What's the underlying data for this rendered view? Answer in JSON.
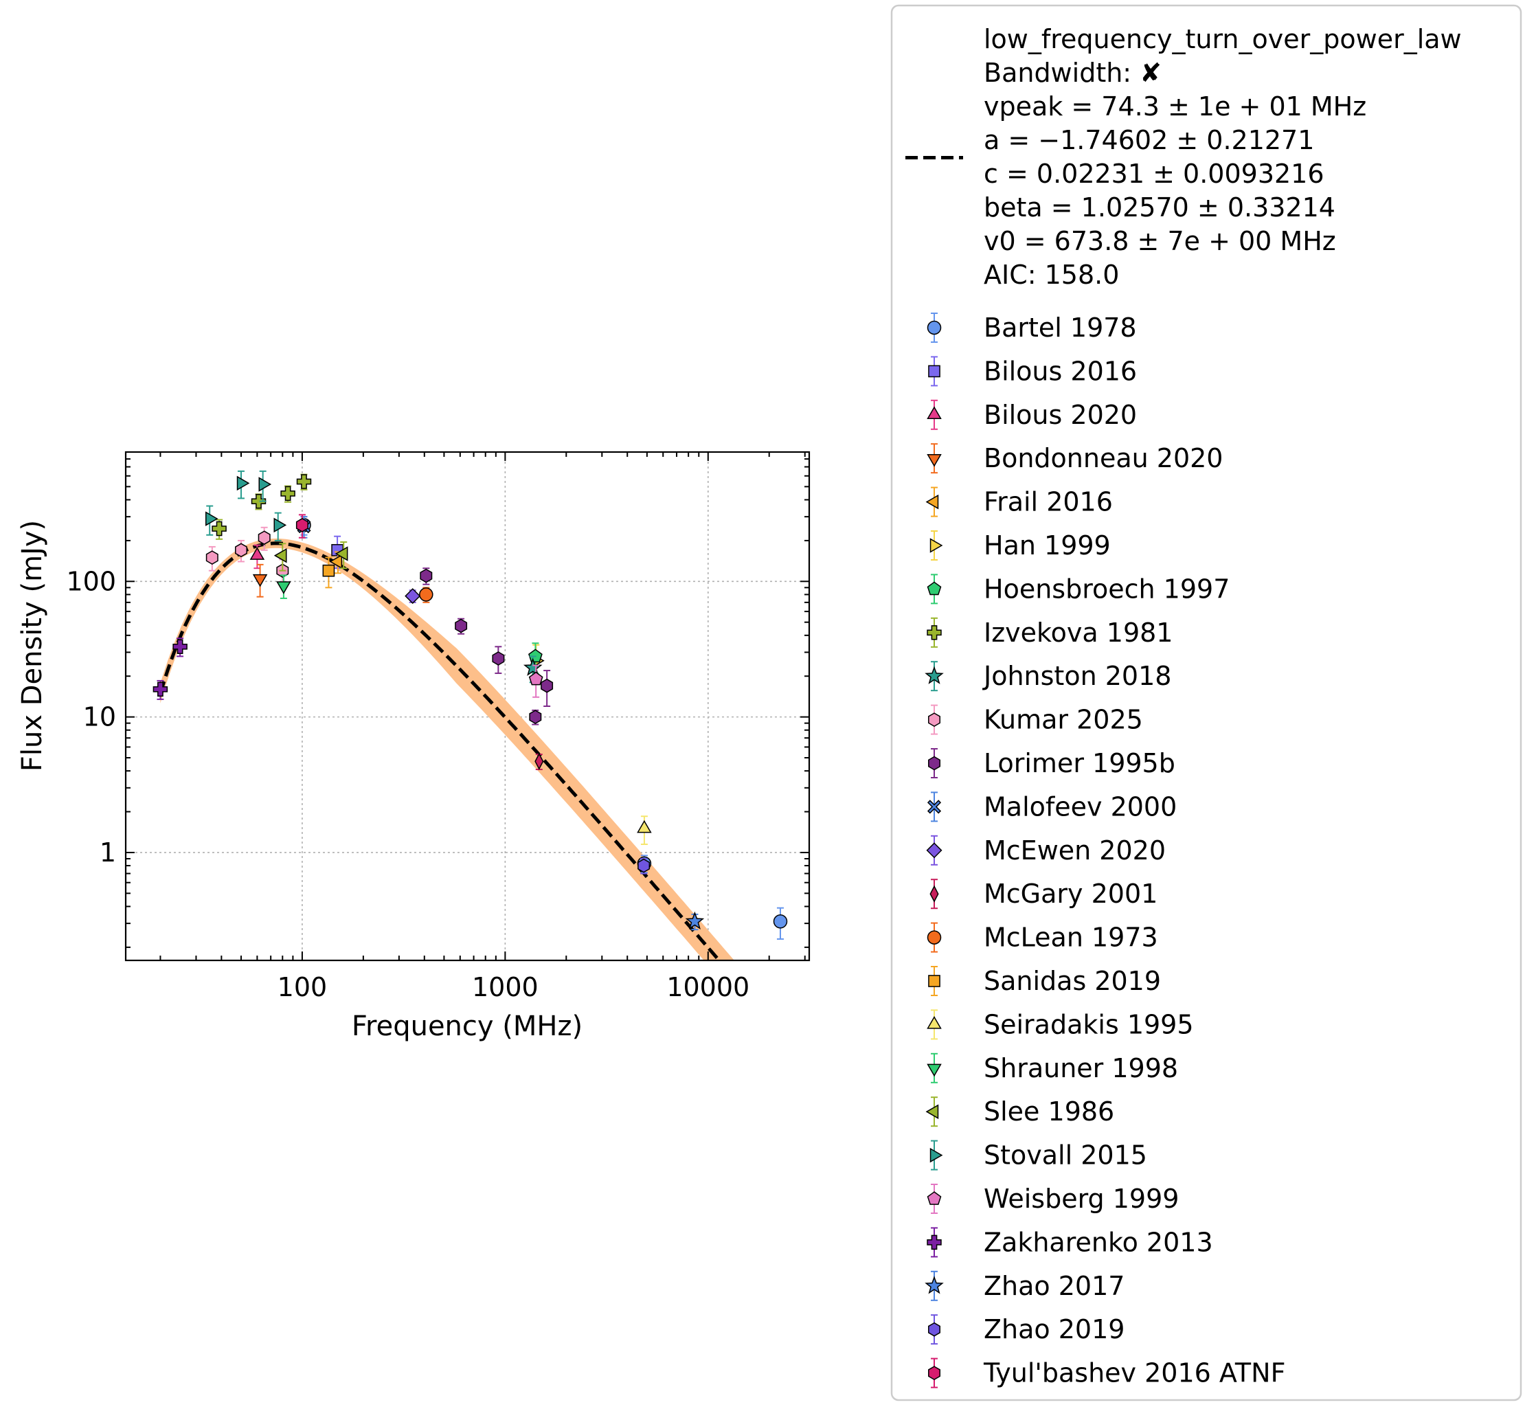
{
  "chart_data": {
    "type": "scatter",
    "title": "",
    "xlabel": "Frequency (MHz)",
    "ylabel": "Flux Density (mJy)",
    "xscale": "log",
    "yscale": "log",
    "xlim": [
      13.5,
      31500
    ],
    "ylim": [
      0.16,
      900
    ],
    "grid": true,
    "legend_position": "outside-right",
    "x_ticks": [
      {
        "value": 100,
        "label": "100"
      },
      {
        "value": 1000,
        "label": "1000"
      },
      {
        "value": 10000,
        "label": "10000"
      }
    ],
    "y_ticks": [
      {
        "value": 1,
        "label": "1"
      },
      {
        "value": 10,
        "label": "10"
      },
      {
        "value": 100,
        "label": "100"
      }
    ],
    "fit": {
      "model": "low_frequency_turn_over_power_law",
      "color": "#000000",
      "band_color": "#fdbf8a",
      "vpeak": 74.3,
      "a": -1.74602,
      "c": 0.02231,
      "beta": 1.0257,
      "v0": 673.8,
      "x_range": [
        20,
        14000
      ],
      "legend_lines": [
        "low_frequency_turn_over_power_law",
        "Bandwidth: ✘",
        "vpeak = 74.3 ± 1e + 01 MHz",
        "a = −1.74602 ± 0.21271",
        "c = 0.02231 ± 0.0093216",
        "beta = 1.02570 ± 0.33214",
        "v0 = 673.8 ± 7e + 00 MHz",
        "AIC: 158.0"
      ]
    },
    "series": [
      {
        "name": "Bartel 1978",
        "marker": "circle",
        "color": "#6495ed",
        "points": [
          [
            102,
            260,
            40
          ],
          [
            4850,
            0.83,
            0.12
          ],
          [
            22700,
            0.31,
            0.08
          ]
        ]
      },
      {
        "name": "Bilous 2016",
        "marker": "square",
        "color": "#7b68ee",
        "points": [
          [
            149,
            170,
            45
          ]
        ]
      },
      {
        "name": "Bilous 2020",
        "marker": "triangle-up",
        "color": "#e63a8a",
        "points": [
          [
            60,
            155,
            30
          ]
        ]
      },
      {
        "name": "Bondonneau 2020",
        "marker": "triangle-down",
        "color": "#f26b1d",
        "points": [
          [
            62,
            105,
            28
          ]
        ]
      },
      {
        "name": "Frail 2016",
        "marker": "triangle-left",
        "color": "#f5a623",
        "points": [
          [
            150,
            140,
            25
          ]
        ]
      },
      {
        "name": "Han 1999",
        "marker": "triangle-right",
        "color": "#f5d547",
        "points": [
          [
            1420,
            26,
            8
          ]
        ]
      },
      {
        "name": "Hoensbroech 1997",
        "marker": "pentagon",
        "color": "#2ecc71",
        "points": [
          [
            1410,
            28,
            7
          ]
        ]
      },
      {
        "name": "Izvekova 1981",
        "marker": "plus",
        "color": "#9ab52d",
        "points": [
          [
            39,
            245,
            40
          ],
          [
            61,
            390,
            50
          ],
          [
            85,
            445,
            60
          ],
          [
            102,
            545,
            70
          ]
        ]
      },
      {
        "name": "Johnston 2018",
        "marker": "star",
        "color": "#2a9d8f",
        "points": [
          [
            1369,
            23,
            5
          ]
        ]
      },
      {
        "name": "Kumar 2025",
        "marker": "hexagon",
        "color": "#f49ac1",
        "points": [
          [
            36,
            150,
            30
          ],
          [
            50,
            170,
            30
          ],
          [
            65,
            210,
            40
          ],
          [
            80,
            120,
            25
          ]
        ]
      },
      {
        "name": "Lorimer 1995b",
        "marker": "hexagon",
        "color": "#7d2a8a",
        "points": [
          [
            408,
            110,
            15
          ],
          [
            606,
            47,
            6
          ],
          [
            925,
            27,
            6
          ],
          [
            1408,
            10,
            1.2
          ],
          [
            1606,
            17,
            5
          ]
        ]
      },
      {
        "name": "Malofeev 2000",
        "marker": "x",
        "color": "#4d84e0",
        "points": [
          [
            102,
            255,
            45
          ]
        ]
      },
      {
        "name": "McEwen 2020",
        "marker": "diamond",
        "color": "#7b55e0",
        "points": [
          [
            350,
            78,
            8
          ]
        ]
      },
      {
        "name": "McGary 2001",
        "marker": "thin-diamond",
        "color": "#c71e5b",
        "points": [
          [
            1470,
            4.7,
            0.6
          ]
        ]
      },
      {
        "name": "McLean 1973",
        "marker": "circle",
        "color": "#f26b1d",
        "points": [
          [
            408,
            80,
            10
          ]
        ]
      },
      {
        "name": "Sanidas 2019",
        "marker": "square",
        "color": "#f5a623",
        "points": [
          [
            135,
            120,
            30
          ]
        ]
      },
      {
        "name": "Seiradakis 1995",
        "marker": "triangle-up",
        "color": "#f5e66e",
        "points": [
          [
            4850,
            1.5,
            0.35
          ]
        ]
      },
      {
        "name": "Shrauner 1998",
        "marker": "triangle-down",
        "color": "#2ecc71",
        "points": [
          [
            81,
            93,
            18
          ]
        ]
      },
      {
        "name": "Slee 1986",
        "marker": "triangle-left",
        "color": "#9ab52d",
        "points": [
          [
            80,
            155,
            35
          ],
          [
            160,
            160,
            35
          ]
        ]
      },
      {
        "name": "Stovall 2015",
        "marker": "triangle-right",
        "color": "#2a9d8f",
        "points": [
          [
            35,
            290,
            70
          ],
          [
            50,
            530,
            120
          ],
          [
            64,
            520,
            130
          ],
          [
            76,
            260,
            60
          ]
        ]
      },
      {
        "name": "Weisberg 1999",
        "marker": "pentagon",
        "color": "#e377c2",
        "points": [
          [
            1418,
            19,
            5
          ]
        ]
      },
      {
        "name": "Zakharenko 2013",
        "marker": "plus",
        "color": "#7b1fa2",
        "points": [
          [
            20,
            16,
            2.5
          ],
          [
            25,
            33,
            5
          ]
        ]
      },
      {
        "name": "Zhao 2017",
        "marker": "star",
        "color": "#4d84e0",
        "points": [
          [
            8600,
            0.31,
            0.04
          ]
        ]
      },
      {
        "name": "Zhao 2019",
        "marker": "hexagon",
        "color": "#6f55e0",
        "points": [
          [
            4820,
            0.8,
            0.1
          ]
        ]
      },
      {
        "name": "Tyul'bashev 2016 ATNF",
        "marker": "hexagon",
        "color": "#d61c6e",
        "points": [
          [
            100,
            260,
            50
          ]
        ]
      }
    ]
  }
}
